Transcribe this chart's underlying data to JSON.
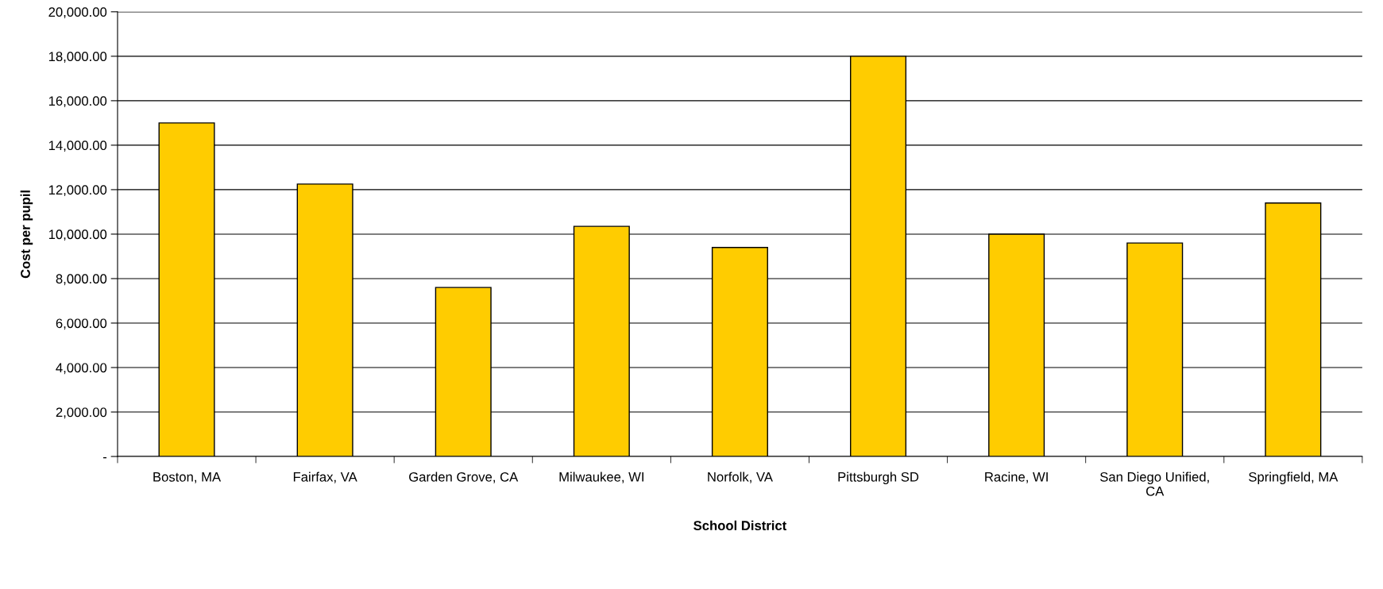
{
  "chart_data": {
    "type": "bar",
    "xlabel": "School District",
    "ylabel": "Cost per pupil",
    "categories": [
      "Boston, MA",
      "Fairfax, VA",
      "Garden Grove, CA",
      "Milwaukee, WI",
      "Norfolk, VA",
      "Pittsburgh SD",
      "Racine, WI",
      "San Diego Unified,\nCA",
      "Springfield, MA"
    ],
    "values": [
      15000,
      12250,
      7600,
      10350,
      9400,
      18000,
      10000,
      9600,
      11400
    ],
    "color": "#ffcc00",
    "ylim": [
      0,
      20000
    ],
    "yticks": [
      {
        "value": 0,
        "label": "-"
      },
      {
        "value": 2000,
        "label": "2,000.00"
      },
      {
        "value": 4000,
        "label": "4,000.00"
      },
      {
        "value": 6000,
        "label": "6,000.00"
      },
      {
        "value": 8000,
        "label": "8,000.00"
      },
      {
        "value": 10000,
        "label": "10,000.00"
      },
      {
        "value": 12000,
        "label": "12,000.00"
      },
      {
        "value": 14000,
        "label": "14,000.00"
      },
      {
        "value": 16000,
        "label": "16,000.00"
      },
      {
        "value": 18000,
        "label": "18,000.00"
      },
      {
        "value": 20000,
        "label": "20,000.00"
      }
    ],
    "grid": "y",
    "legend": false
  }
}
